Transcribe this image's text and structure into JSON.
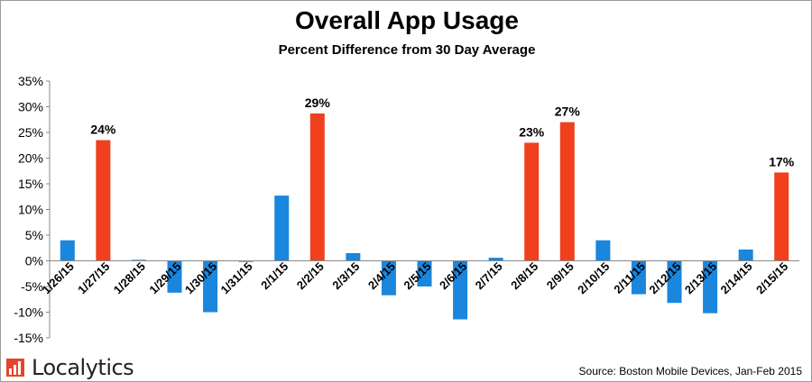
{
  "chart_data": {
    "type": "bar",
    "title": "Overall App Usage",
    "subtitle": "Percent Difference from 30 Day Average",
    "categories": [
      "1/26/15",
      "1/27/15",
      "1/28/15",
      "1/29/15",
      "1/30/15",
      "1/31/15",
      "2/1/15",
      "2/2/15",
      "2/3/15",
      "2/4/15",
      "2/5/15",
      "2/6/15",
      "2/7/15",
      "2/8/15",
      "2/9/15",
      "2/10/15",
      "2/11/15",
      "2/12/15",
      "2/13/15",
      "2/14/15",
      "2/15/15"
    ],
    "values": [
      4.0,
      23.5,
      0.2,
      -6.2,
      -10.0,
      -0.2,
      12.7,
      28.7,
      1.5,
      -6.7,
      -5.0,
      -11.4,
      0.6,
      23.0,
      27.0,
      4.0,
      -6.5,
      -8.2,
      -10.2,
      2.2,
      17.2
    ],
    "highlight": [
      false,
      true,
      false,
      false,
      false,
      false,
      false,
      true,
      false,
      false,
      false,
      false,
      false,
      true,
      true,
      false,
      false,
      false,
      false,
      false,
      true
    ],
    "data_labels": [
      "",
      "24%",
      "",
      "",
      "",
      "",
      "",
      "29%",
      "",
      "",
      "",
      "",
      "",
      "23%",
      "27%",
      "",
      "",
      "",
      "",
      "",
      "17%"
    ],
    "ylim": [
      -15,
      35
    ],
    "yticks": [
      -15,
      -10,
      -5,
      0,
      5,
      10,
      15,
      20,
      25,
      30,
      35
    ],
    "ytick_labels": [
      "-15%",
      "-10%",
      "-5%",
      "0%",
      "5%",
      "10%",
      "15%",
      "20%",
      "25%",
      "30%",
      "35%"
    ],
    "xlabel": "",
    "ylabel": "",
    "grid": false,
    "colors": {
      "normal": "#1a86de",
      "highlight": "#f0401d"
    }
  },
  "logo": {
    "text": "Localytics",
    "icon": "localytics-logo-icon"
  },
  "source": "Source: Boston Mobile Devices, Jan-Feb 2015"
}
